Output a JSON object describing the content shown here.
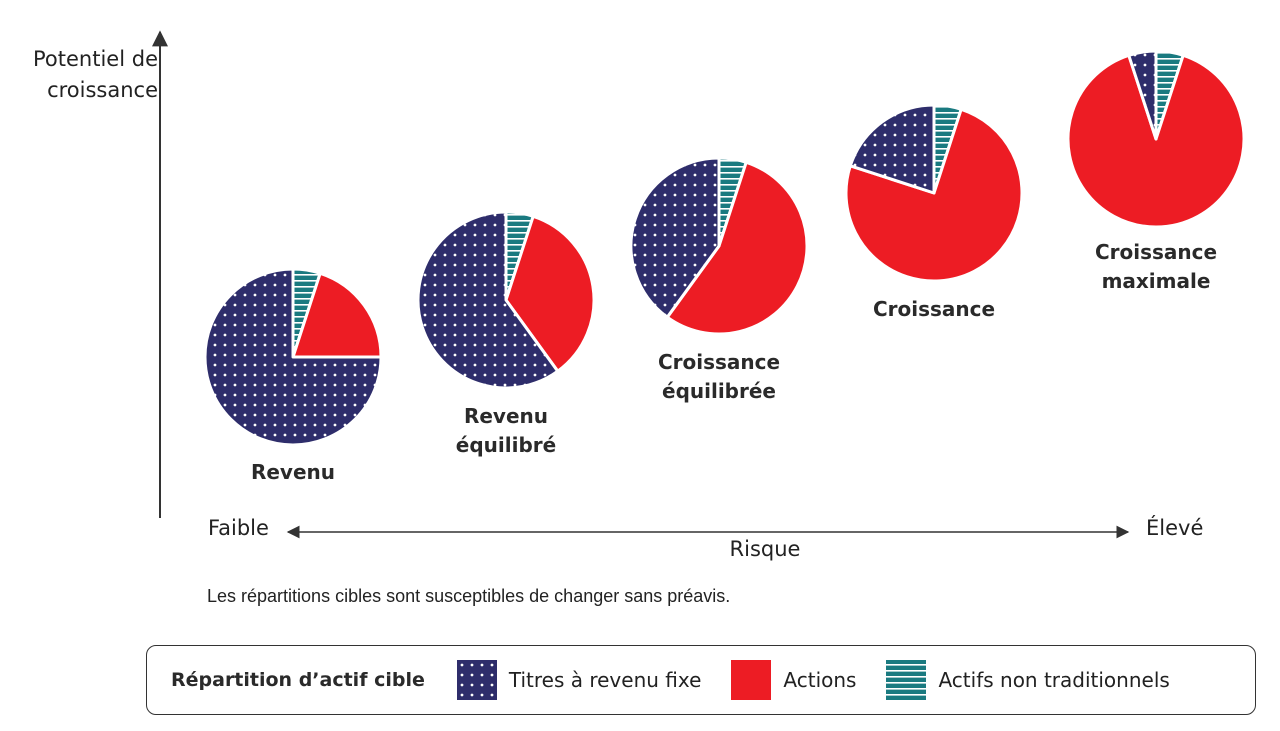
{
  "chart_data": {
    "type": "pie",
    "yaxis_title": "Potentiel de croissance",
    "xaxis_title": "Risque",
    "xaxis_low": "Faible",
    "xaxis_high": "Élevé",
    "note": "Les répartitions cibles sont susceptibles de changer sans préavis.",
    "series_names": [
      "Titres à revenu fixe",
      "Actions",
      "Actifs non traditionnels"
    ],
    "colors": {
      "Titres à revenu fixe": "#2e2d6b",
      "Actions": "#ed1c24",
      "Actifs non traditionnels": "#1a7a80"
    },
    "portfolios": [
      {
        "label_lines": [
          "Revenu"
        ],
        "values": {
          "Actifs non traditionnels": 5,
          "Actions": 20,
          "Titres à revenu fixe": 75
        }
      },
      {
        "label_lines": [
          "Revenu",
          "équilibré"
        ],
        "values": {
          "Actifs non traditionnels": 5,
          "Actions": 35,
          "Titres à revenu fixe": 60
        }
      },
      {
        "label_lines": [
          "Croissance",
          "équilibrée"
        ],
        "values": {
          "Actifs non traditionnels": 5,
          "Actions": 55,
          "Titres à revenu fixe": 40
        }
      },
      {
        "label_lines": [
          "Croissance"
        ],
        "values": {
          "Actifs non traditionnels": 5,
          "Actions": 75,
          "Titres à revenu fixe": 20
        }
      },
      {
        "label_lines": [
          "Croissance",
          "maximale"
        ],
        "values": {
          "Actifs non traditionnels": 5,
          "Actions": 90,
          "Titres à revenu fixe": 5
        }
      }
    ]
  },
  "legend": {
    "title": "Répartition d’actif cible",
    "items": [
      {
        "label": "Titres à revenu fixe",
        "pattern": "dots"
      },
      {
        "label": "Actions",
        "pattern": "solid"
      },
      {
        "label": "Actifs non traditionnels",
        "pattern": "stripes"
      }
    ]
  }
}
